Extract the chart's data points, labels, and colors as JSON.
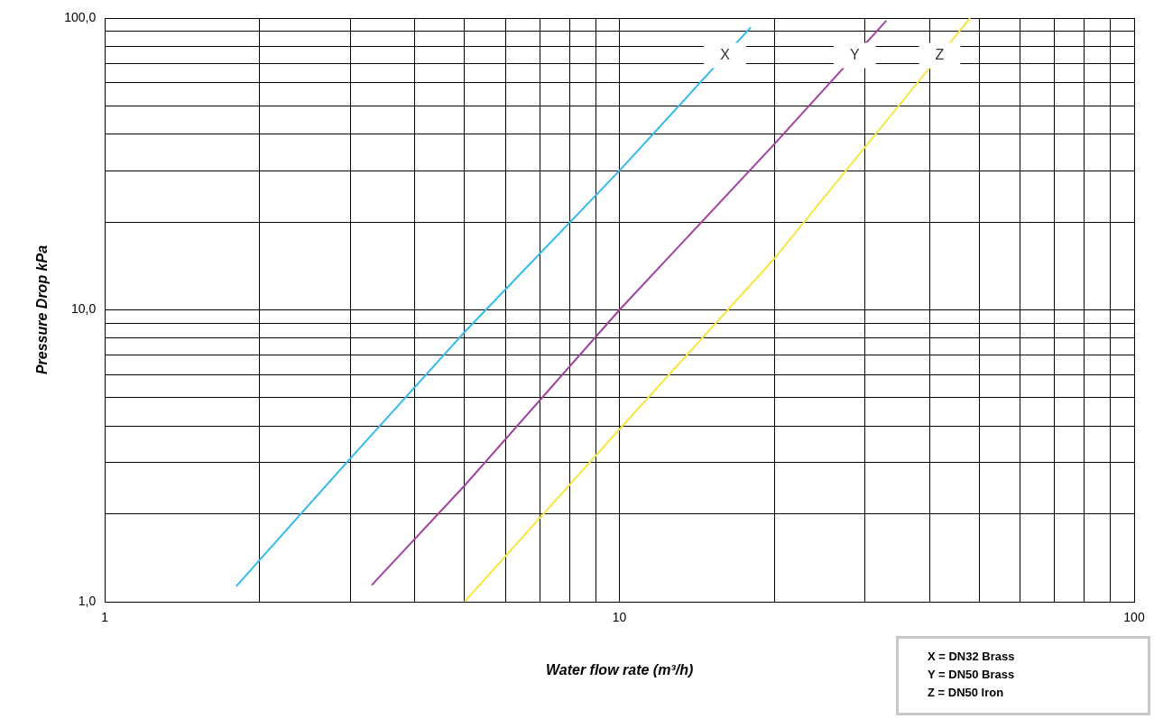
{
  "chart_data": {
    "type": "line",
    "xlabel": "Water flow rate (m³/h)",
    "ylabel": "Pressure Drop kPa",
    "log": "xy",
    "grid": true,
    "legend": false,
    "marker": "none",
    "line_style": "solid",
    "xlim": [
      1,
      100
    ],
    "ylim": [
      1,
      100
    ],
    "xticks": [
      1,
      {
        "value": 2,
        "label": null
      },
      {
        "value": 3,
        "label": null
      },
      {
        "value": 4,
        "label": null
      },
      {
        "value": 5,
        "label": null
      },
      {
        "value": 6,
        "label": null
      },
      {
        "value": 7,
        "label": null
      },
      {
        "value": 8,
        "label": null
      },
      {
        "value": 9,
        "label": null
      },
      10,
      {
        "value": 20,
        "label": null
      },
      {
        "value": 30,
        "label": null
      },
      {
        "value": 40,
        "label": null
      },
      {
        "value": 50,
        "label": null
      },
      {
        "value": 60,
        "label": null
      },
      {
        "value": 70,
        "label": null
      },
      {
        "value": 80,
        "label": null
      },
      {
        "value": 90,
        "label": null
      },
      100
    ],
    "yticks": [
      {
        "value": 1,
        "label": "1,0"
      },
      {
        "value": 2,
        "label": null
      },
      {
        "value": 3,
        "label": null
      },
      {
        "value": 4,
        "label": null
      },
      {
        "value": 5,
        "label": null
      },
      {
        "value": 6,
        "label": null
      },
      {
        "value": 7,
        "label": null
      },
      {
        "value": 8,
        "label": null
      },
      {
        "value": 9,
        "label": null
      },
      {
        "value": 10,
        "label": "10,0"
      },
      {
        "value": 20,
        "label": null
      },
      {
        "value": 30,
        "label": null
      },
      {
        "value": 40,
        "label": null
      },
      {
        "value": 50,
        "label": null
      },
      {
        "value": 60,
        "label": null
      },
      {
        "value": 70,
        "label": null
      },
      {
        "value": 80,
        "label": null
      },
      {
        "value": 90,
        "label": null
      },
      {
        "value": 100,
        "label": "100,0"
      }
    ],
    "series": [
      {
        "name": "X",
        "color": "#33bbee",
        "x": [
          1.8,
          3,
          5,
          10,
          18
        ],
        "values": [
          1.13,
          3.1,
          8.4,
          30,
          93
        ]
      },
      {
        "name": "Y",
        "color": "#a040a0",
        "x": [
          3.3,
          5,
          10,
          20,
          33
        ],
        "values": [
          1.14,
          2.5,
          10,
          37,
          98
        ]
      },
      {
        "name": "Z",
        "color": "#f5e642",
        "x": [
          5,
          10,
          20,
          48
        ],
        "values": [
          1,
          3.9,
          15,
          100
        ]
      }
    ],
    "annotations": [
      "X = DN32 Brass",
      "Y = DN50 Brass",
      "Z = DN50 Iron"
    ]
  }
}
